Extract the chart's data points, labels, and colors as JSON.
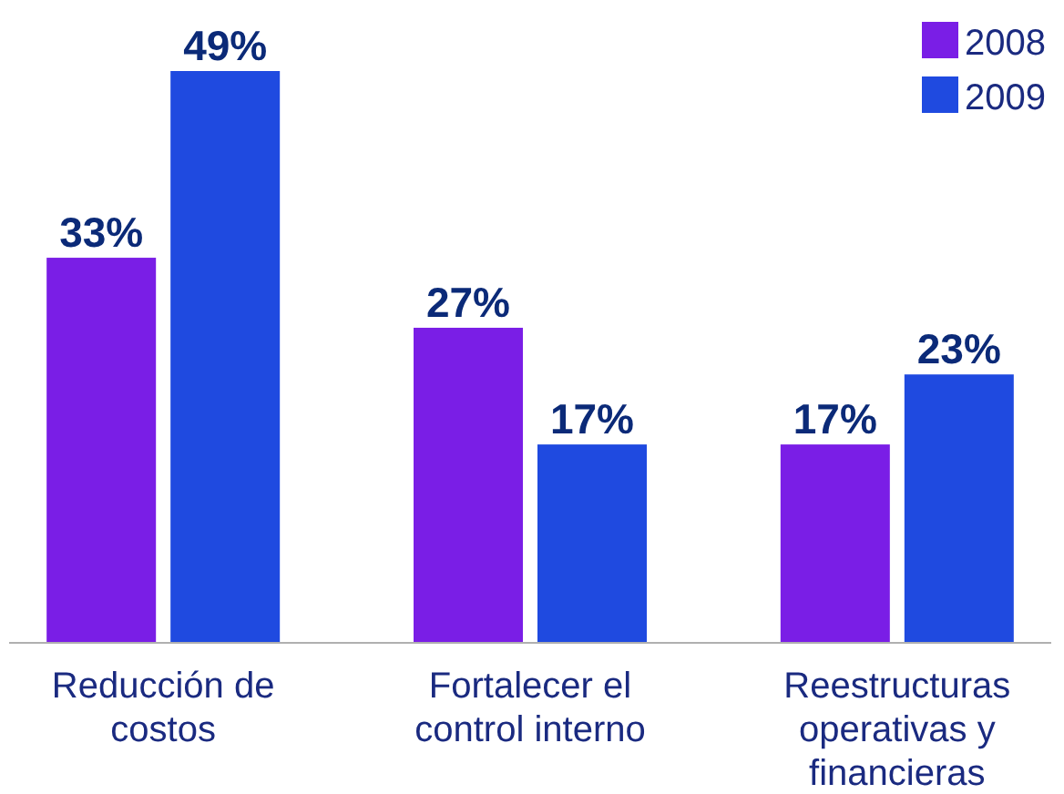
{
  "chart_data": {
    "type": "bar",
    "categories": [
      "Reducción de costos",
      "Fortalecer el control interno",
      "Reestructuras operativas y financieras"
    ],
    "series": [
      {
        "name": "2008",
        "color": "#7a1ee6",
        "values": [
          33,
          27,
          17
        ],
        "value_labels": [
          "33%",
          "27%",
          "17%"
        ]
      },
      {
        "name": "2009",
        "color": "#1f4ae0",
        "values": [
          49,
          17,
          23
        ],
        "value_labels": [
          "49%",
          "17%",
          "23%"
        ]
      }
    ],
    "legend": "top right"
  }
}
